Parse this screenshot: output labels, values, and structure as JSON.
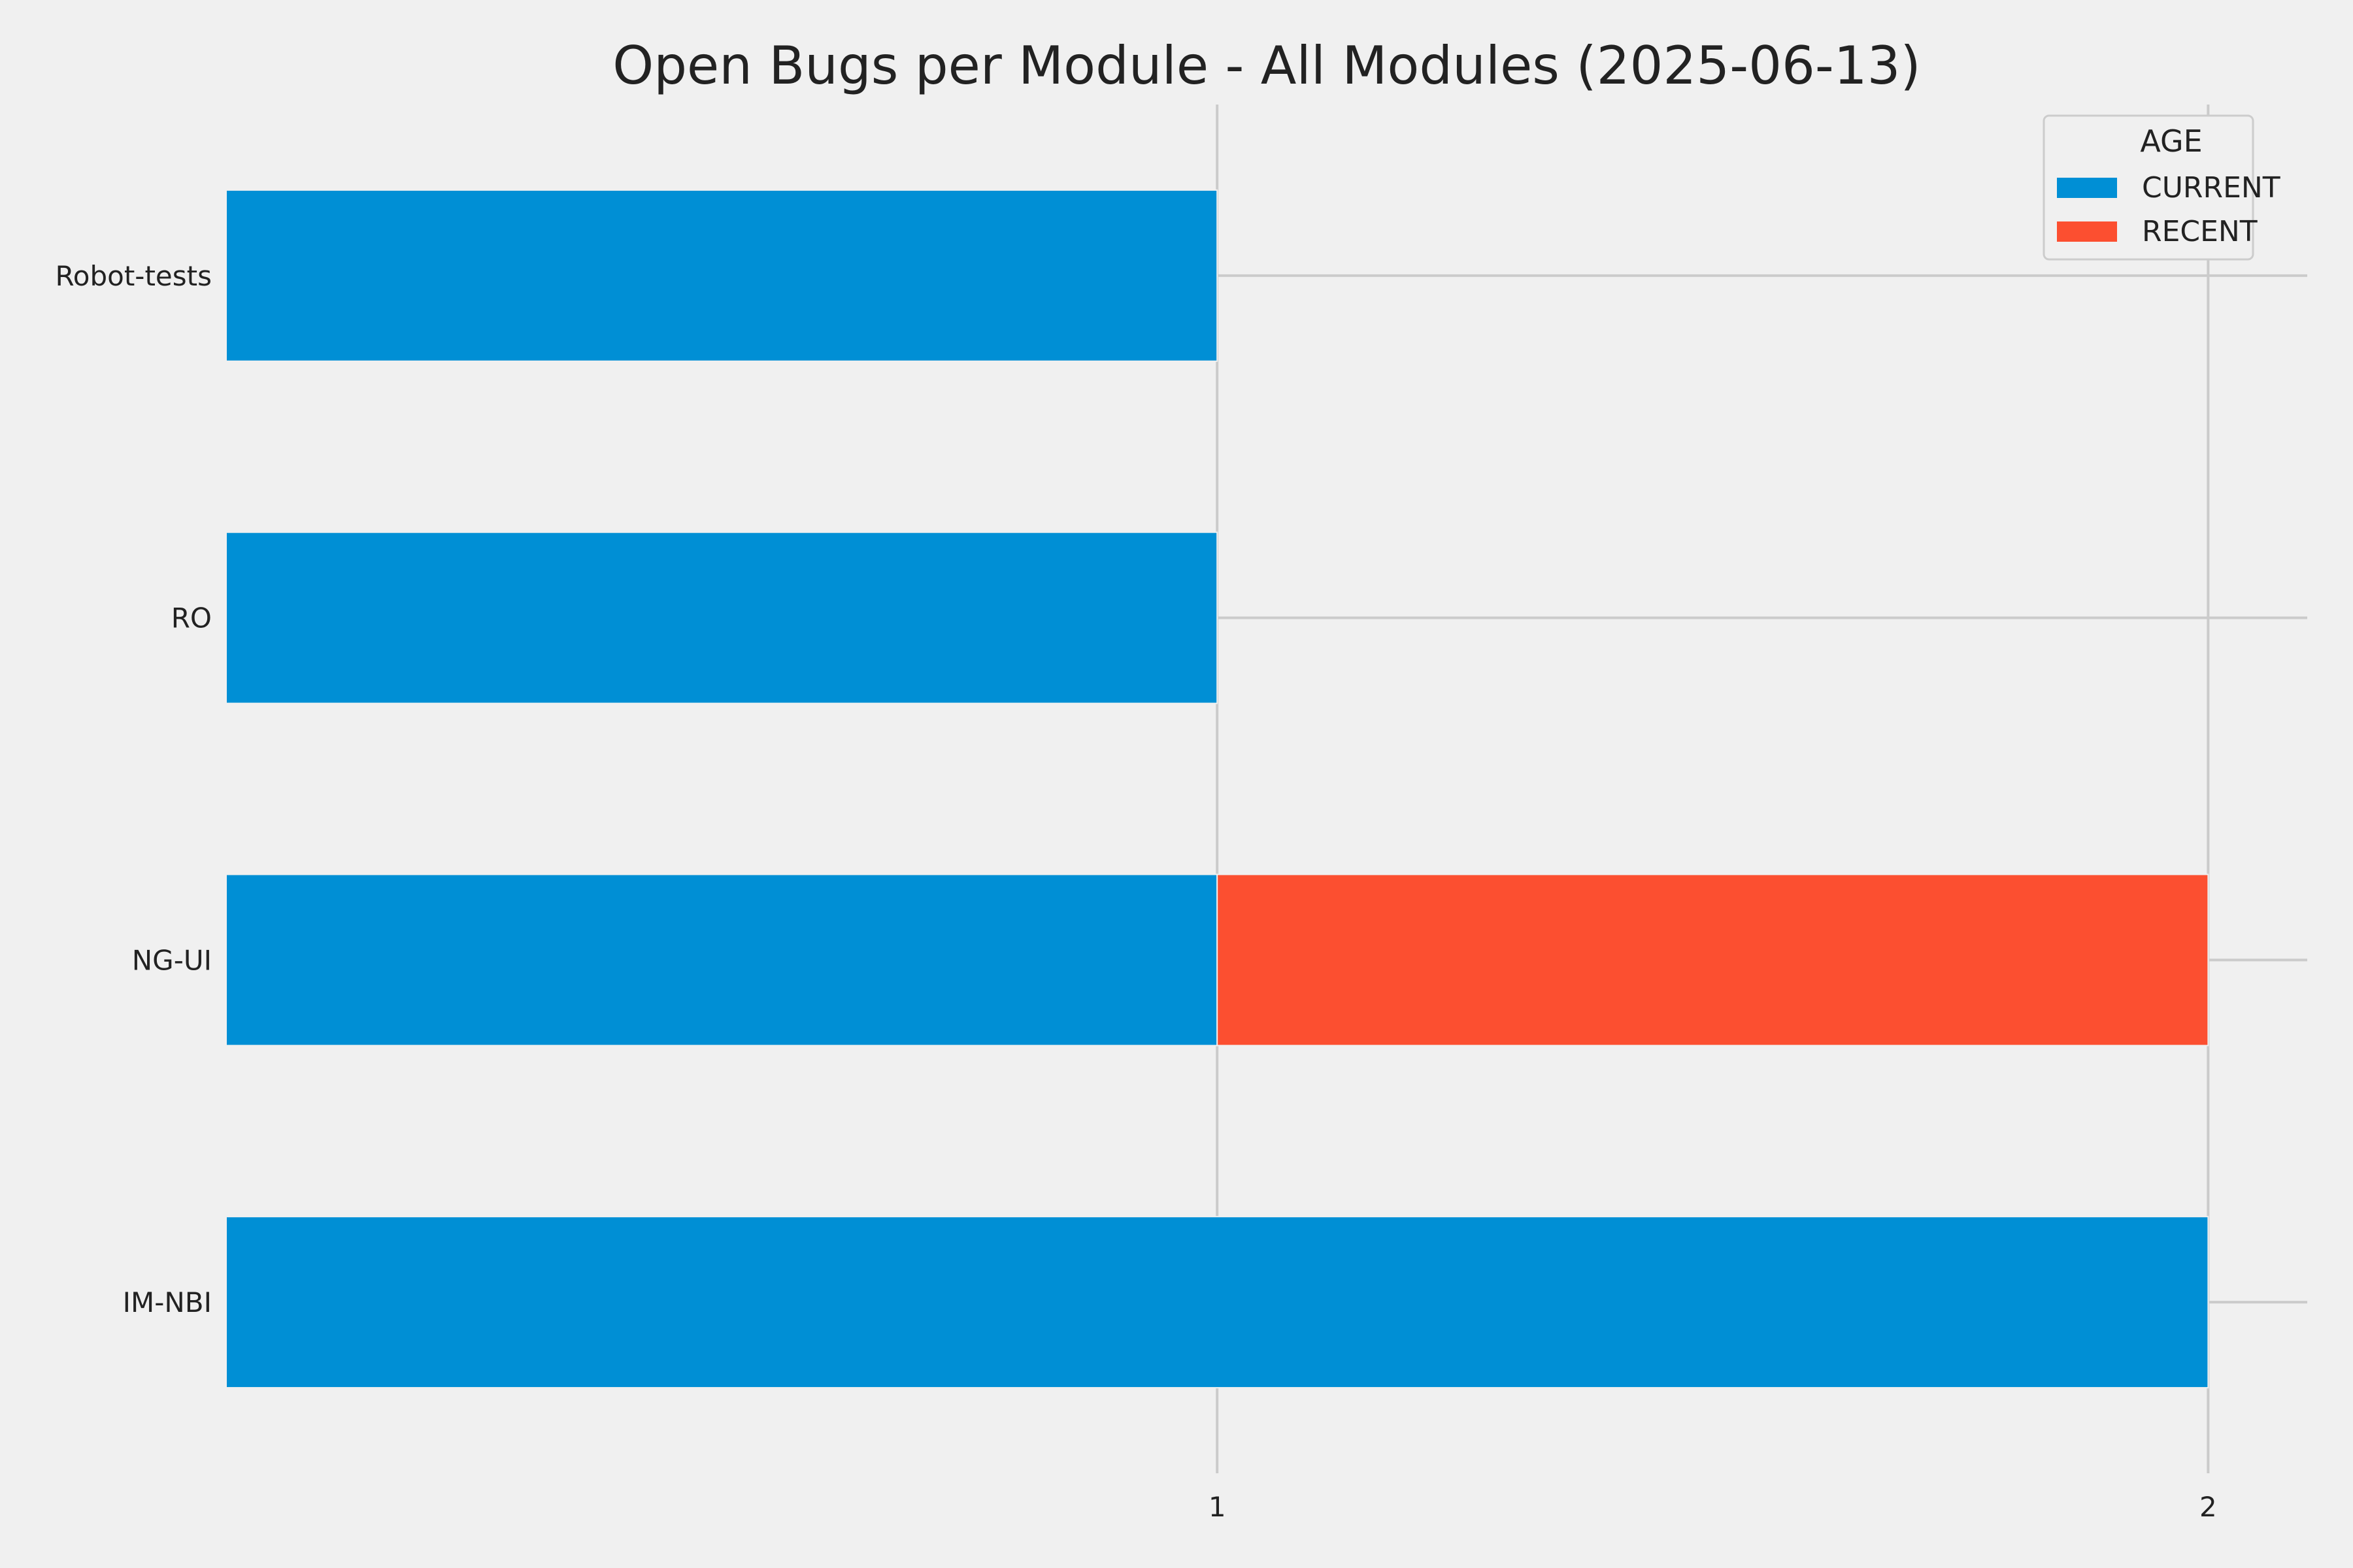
{
  "chart_data": {
    "type": "bar",
    "orientation": "horizontal",
    "stacked": true,
    "title": "Open Bugs per Module - All Modules (2025-06-13)",
    "xlabel": "",
    "ylabel": "",
    "categories": [
      "IM-NBI",
      "NG-UI",
      "RO",
      "Robot-tests"
    ],
    "series": [
      {
        "name": "CURRENT",
        "color": "#008fd5",
        "values": [
          2,
          1,
          1,
          1
        ]
      },
      {
        "name": "RECENT",
        "color": "#fc4f30",
        "values": [
          0,
          1,
          0,
          0
        ]
      }
    ],
    "xlim": [
      0,
      2.1
    ],
    "xticks": [
      "1",
      "2"
    ],
    "legend": {
      "title": "AGE",
      "placement": "top-right",
      "entries": [
        "CURRENT",
        "RECENT"
      ]
    },
    "grid": true,
    "background_color": "#f0f0f0",
    "grid_color": "#cbcbcb"
  }
}
